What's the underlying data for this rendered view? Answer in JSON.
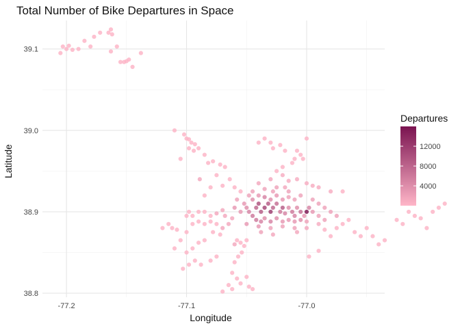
{
  "chart_data": {
    "type": "scatter",
    "title": "Total Number of Bike Departures in Space",
    "xlabel": "Longitude",
    "ylabel": "Latitude",
    "xlim": [
      -77.22,
      -76.935
    ],
    "ylim": [
      38.795,
      39.135
    ],
    "x_ticks": [
      {
        "value": -77.2,
        "label": "-77.2"
      },
      {
        "value": -77.1,
        "label": "-77.1"
      },
      {
        "value": -77.0,
        "label": "-77.0"
      }
    ],
    "y_ticks": [
      {
        "value": 38.8,
        "label": "38.8"
      },
      {
        "value": 38.9,
        "label": "38.9"
      },
      {
        "value": 39.0,
        "label": "39.0"
      },
      {
        "value": 39.1,
        "label": "39.1"
      }
    ],
    "grid": true,
    "legend": {
      "title": "Departures",
      "placement": "right",
      "min": 0,
      "max": 16000,
      "low_color": "#ffb6c8",
      "high_color": "#7a1350",
      "ticks": [
        {
          "value": 4000,
          "label": "4000"
        },
        {
          "value": 8000,
          "label": "8000"
        },
        {
          "value": 12000,
          "label": "12000"
        }
      ]
    },
    "series": [
      {
        "values_columns": [
          "longitude",
          "latitude",
          "departures"
        ],
        "points": [
          [
            -77.205,
            39.095,
            300
          ],
          [
            -77.203,
            39.103,
            300
          ],
          [
            -77.198,
            39.104,
            300
          ],
          [
            -77.195,
            39.099,
            300
          ],
          [
            -77.2,
            39.1,
            300
          ],
          [
            -77.19,
            39.1,
            300
          ],
          [
            -77.185,
            39.11,
            300
          ],
          [
            -77.18,
            39.103,
            300
          ],
          [
            -77.177,
            39.115,
            300
          ],
          [
            -77.172,
            39.12,
            300
          ],
          [
            -77.165,
            39.12,
            300
          ],
          [
            -77.163,
            39.124,
            300
          ],
          [
            -77.162,
            39.118,
            300
          ],
          [
            -77.163,
            39.097,
            300
          ],
          [
            -77.158,
            39.103,
            300
          ],
          [
            -77.155,
            39.084,
            300
          ],
          [
            -77.152,
            39.084,
            300
          ],
          [
            -77.15,
            39.085,
            300
          ],
          [
            -77.148,
            39.087,
            300
          ],
          [
            -77.145,
            39.078,
            300
          ],
          [
            -77.138,
            39.095,
            300
          ],
          [
            -77.11,
            39.0,
            300
          ],
          [
            -77.102,
            38.995,
            300
          ],
          [
            -77.1,
            38.99,
            300
          ],
          [
            -77.098,
            38.989,
            300
          ],
          [
            -77.096,
            38.985,
            300
          ],
          [
            -77.093,
            38.983,
            300
          ],
          [
            -77.098,
            38.978,
            300
          ],
          [
            -77.094,
            38.975,
            300
          ],
          [
            -77.09,
            38.978,
            300
          ],
          [
            -77.085,
            38.97,
            300
          ],
          [
            -77.105,
            38.965,
            300
          ],
          [
            -77.082,
            38.96,
            300
          ],
          [
            -77.078,
            38.962,
            300
          ],
          [
            -77.072,
            38.958,
            300
          ],
          [
            -77.068,
            38.955,
            300
          ],
          [
            -77.075,
            38.945,
            300
          ],
          [
            -77.064,
            38.94,
            300
          ],
          [
            -77.07,
            38.932,
            300
          ],
          [
            -77.06,
            38.93,
            300
          ],
          [
            -77.055,
            38.925,
            300
          ],
          [
            -77.085,
            38.92,
            300
          ],
          [
            -77.08,
            38.93,
            300
          ],
          [
            -77.089,
            38.94,
            1500
          ],
          [
            -77.04,
            38.985,
            300
          ],
          [
            -77.035,
            38.99,
            300
          ],
          [
            -77.03,
            38.985,
            300
          ],
          [
            -77.028,
            38.978,
            300
          ],
          [
            -77.022,
            38.982,
            300
          ],
          [
            -77.018,
            38.975,
            300
          ],
          [
            -77.0,
            38.99,
            300
          ],
          [
            -77.008,
            38.975,
            300
          ],
          [
            -77.005,
            38.97,
            300
          ],
          [
            -77.01,
            38.965,
            300
          ],
          [
            -77.003,
            38.965,
            300
          ],
          [
            -77.012,
            38.96,
            300
          ],
          [
            -77.02,
            38.955,
            300
          ],
          [
            -77.025,
            38.95,
            300
          ],
          [
            -77.12,
            38.88,
            300
          ],
          [
            -77.115,
            38.885,
            300
          ],
          [
            -77.112,
            38.88,
            300
          ],
          [
            -77.108,
            38.878,
            300
          ],
          [
            -77.1,
            38.875,
            300
          ],
          [
            -77.105,
            38.865,
            300
          ],
          [
            -77.11,
            38.855,
            300
          ],
          [
            -77.1,
            38.85,
            300
          ],
          [
            -77.095,
            38.855,
            300
          ],
          [
            -77.09,
            38.862,
            300
          ],
          [
            -77.085,
            38.865,
            300
          ],
          [
            -77.093,
            38.84,
            300
          ],
          [
            -77.088,
            38.835,
            300
          ],
          [
            -77.08,
            38.84,
            300
          ],
          [
            -77.075,
            38.845,
            300
          ],
          [
            -77.098,
            38.835,
            300
          ],
          [
            -77.103,
            38.83,
            300
          ],
          [
            -77.06,
            38.86,
            1500
          ],
          [
            -77.058,
            38.865,
            300
          ],
          [
            -77.055,
            38.862,
            300
          ],
          [
            -77.052,
            38.858,
            300
          ],
          [
            -77.05,
            38.865,
            300
          ],
          [
            -77.054,
            38.85,
            300
          ],
          [
            -77.057,
            38.845,
            300
          ],
          [
            -77.06,
            38.838,
            300
          ],
          [
            -77.062,
            38.825,
            300
          ],
          [
            -77.058,
            38.818,
            300
          ],
          [
            -77.055,
            38.812,
            300
          ],
          [
            -77.05,
            38.82,
            300
          ],
          [
            -77.048,
            38.808,
            300
          ],
          [
            -77.045,
            38.805,
            300
          ],
          [
            -77.065,
            38.81,
            300
          ],
          [
            -77.07,
            38.802,
            300
          ],
          [
            -77.062,
            38.805,
            300
          ],
          [
            -77.098,
            38.9,
            300
          ],
          [
            -77.1,
            38.895,
            300
          ],
          [
            -77.095,
            38.895,
            300
          ],
          [
            -77.09,
            38.9,
            300
          ],
          [
            -77.085,
            38.9,
            300
          ],
          [
            -77.08,
            38.895,
            300
          ],
          [
            -77.075,
            38.898,
            1500
          ],
          [
            -77.07,
            38.902,
            1500
          ],
          [
            -77.068,
            38.895,
            1500
          ],
          [
            -77.062,
            38.892,
            1500
          ],
          [
            -77.065,
            38.885,
            1500
          ],
          [
            -77.07,
            38.88,
            1500
          ],
          [
            -77.075,
            38.885,
            300
          ],
          [
            -77.08,
            38.888,
            300
          ],
          [
            -77.085,
            38.885,
            300
          ],
          [
            -77.09,
            38.888,
            300
          ],
          [
            -77.095,
            38.885,
            300
          ],
          [
            -77.078,
            38.875,
            300
          ],
          [
            -77.072,
            38.872,
            300
          ],
          [
            -77.06,
            38.905,
            3000
          ],
          [
            -77.055,
            38.9,
            3000
          ],
          [
            -77.05,
            38.905,
            4000
          ],
          [
            -77.048,
            38.9,
            5000
          ],
          [
            -77.045,
            38.895,
            6000
          ],
          [
            -77.042,
            38.905,
            8000
          ],
          [
            -77.04,
            38.91,
            10000
          ],
          [
            -77.038,
            38.9,
            9000
          ],
          [
            -77.035,
            38.905,
            11000
          ],
          [
            -77.032,
            38.91,
            9000
          ],
          [
            -77.03,
            38.9,
            12000
          ],
          [
            -77.028,
            38.905,
            8000
          ],
          [
            -77.025,
            38.91,
            7000
          ],
          [
            -77.022,
            38.9,
            6000
          ],
          [
            -77.02,
            38.905,
            9000
          ],
          [
            -77.018,
            38.898,
            5000
          ],
          [
            -77.015,
            38.905,
            4000
          ],
          [
            -77.012,
            38.9,
            6000
          ],
          [
            -77.01,
            38.895,
            5000
          ],
          [
            -77.008,
            38.905,
            4000
          ],
          [
            -77.005,
            38.9,
            7000
          ],
          [
            -77.002,
            38.895,
            3000
          ],
          [
            -77.0,
            38.9,
            16000
          ],
          [
            -76.998,
            38.905,
            5000
          ],
          [
            -76.995,
            38.9,
            3000
          ],
          [
            -77.045,
            38.915,
            4000
          ],
          [
            -77.04,
            38.92,
            3000
          ],
          [
            -77.035,
            38.918,
            5000
          ],
          [
            -77.03,
            38.915,
            4000
          ],
          [
            -77.025,
            38.92,
            3000
          ],
          [
            -77.02,
            38.915,
            3000
          ],
          [
            -77.015,
            38.918,
            2000
          ],
          [
            -77.01,
            38.915,
            2000
          ],
          [
            -77.042,
            38.89,
            6000
          ],
          [
            -77.038,
            38.888,
            5000
          ],
          [
            -77.035,
            38.892,
            4000
          ],
          [
            -77.03,
            38.888,
            5000
          ],
          [
            -77.025,
            38.892,
            4000
          ],
          [
            -77.02,
            38.888,
            3000
          ],
          [
            -77.015,
            38.89,
            3000
          ],
          [
            -77.01,
            38.888,
            3000
          ],
          [
            -77.005,
            38.89,
            4000
          ],
          [
            -77.0,
            38.888,
            2000
          ],
          [
            -77.05,
            38.885,
            3000
          ],
          [
            -77.04,
            38.882,
            3000
          ],
          [
            -77.03,
            38.88,
            2000
          ],
          [
            -77.02,
            38.882,
            2000
          ],
          [
            -77.01,
            38.88,
            2000
          ],
          [
            -77.045,
            38.925,
            2000
          ],
          [
            -77.035,
            38.928,
            2000
          ],
          [
            -77.025,
            38.93,
            2000
          ],
          [
            -77.015,
            38.925,
            2000
          ],
          [
            -77.005,
            38.92,
            2000
          ],
          [
            -76.995,
            38.915,
            2000
          ],
          [
            -76.99,
            38.91,
            2000
          ],
          [
            -76.985,
            38.905,
            2000
          ],
          [
            -76.99,
            38.895,
            2000
          ],
          [
            -76.985,
            38.89,
            2000
          ],
          [
            -76.98,
            38.9,
            2000
          ],
          [
            -76.975,
            38.895,
            2000
          ],
          [
            -77.052,
            38.91,
            3000
          ],
          [
            -77.058,
            38.915,
            2000
          ],
          [
            -77.048,
            38.92,
            2000
          ],
          [
            -77.028,
            38.925,
            2000
          ],
          [
            -77.018,
            38.93,
            1500
          ],
          [
            -77.038,
            38.875,
            2000
          ],
          [
            -77.028,
            38.872,
            1500
          ],
          [
            -77.008,
            38.875,
            1500
          ],
          [
            -77.0,
            38.88,
            1500
          ],
          [
            -77.04,
            38.935,
            1500
          ],
          [
            -77.03,
            38.94,
            1500
          ],
          [
            -77.02,
            38.945,
            1000
          ],
          [
            -77.015,
            38.938,
            1000
          ],
          [
            -77.008,
            38.94,
            1000
          ],
          [
            -77.0,
            38.935,
            1000
          ],
          [
            -76.995,
            38.932,
            1000
          ],
          [
            -76.99,
            38.93,
            1000
          ],
          [
            -76.98,
            38.925,
            1000
          ],
          [
            -76.97,
            38.925,
            300
          ],
          [
            -76.99,
            38.885,
            1000
          ],
          [
            -76.985,
            38.878,
            300
          ],
          [
            -76.98,
            38.87,
            300
          ],
          [
            -76.975,
            38.88,
            300
          ],
          [
            -76.97,
            38.885,
            300
          ],
          [
            -76.965,
            38.89,
            300
          ],
          [
            -76.96,
            38.875,
            300
          ],
          [
            -76.955,
            38.87,
            300
          ],
          [
            -76.95,
            38.88,
            300
          ],
          [
            -76.945,
            38.87,
            300
          ],
          [
            -76.94,
            38.86,
            300
          ],
          [
            -76.935,
            38.865,
            300
          ],
          [
            -76.998,
            38.845,
            300
          ],
          [
            -76.99,
            38.852,
            300
          ],
          [
            -76.925,
            38.89,
            300
          ],
          [
            -76.92,
            38.885,
            300
          ],
          [
            -76.915,
            38.9,
            300
          ],
          [
            -76.91,
            38.895,
            300
          ],
          [
            -76.905,
            38.892,
            300
          ],
          [
            -76.9,
            38.88,
            300
          ],
          [
            -76.895,
            38.9,
            300
          ],
          [
            -76.89,
            38.905,
            300
          ],
          [
            -76.885,
            38.91,
            300
          ]
        ]
      }
    ]
  }
}
